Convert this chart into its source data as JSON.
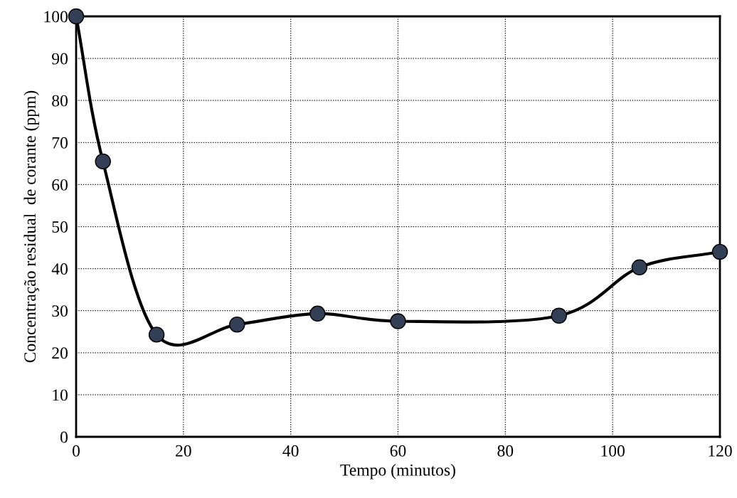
{
  "chart_data": {
    "type": "line",
    "xlabel": "Tempo (minutos)",
    "ylabel": "Concentração residual  de corante (ppm)",
    "x": [
      0,
      5,
      15,
      30,
      45,
      60,
      90,
      105,
      120
    ],
    "series": [
      {
        "color": "#000000",
        "values": [
          100,
          65.5,
          24.3,
          26.7,
          29.3,
          27.5,
          28.8,
          40.3,
          44
        ]
      }
    ],
    "xlim": [
      0,
      120
    ],
    "xticks": [
      0,
      20,
      40,
      60,
      80,
      100,
      120
    ],
    "ylim": [
      0,
      100
    ],
    "yticks": [
      0,
      10,
      20,
      30,
      40,
      50,
      60,
      70,
      80,
      90,
      100
    ],
    "grid": true,
    "marker": "circle",
    "line_style": "solid",
    "legend": false
  }
}
